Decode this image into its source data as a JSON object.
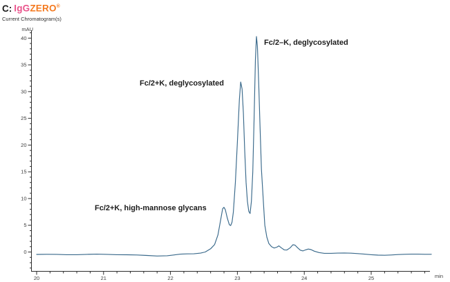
{
  "header": {
    "prefix": "C:",
    "brand_igg": "IgG",
    "brand_zero": "ZERO",
    "brand_reg": "®",
    "brand_color_igg": "#E9548C",
    "brand_color_zero": "#F4791F",
    "subtitle": "Current Chromatogram(s)"
  },
  "chart_data": {
    "type": "line",
    "title": "C: IgGZERO®",
    "subtitle": "Current Chromatogram(s)",
    "xlabel": "min",
    "ylabel": "mAU",
    "xlim": [
      20,
      25.9
    ],
    "ylim": [
      -3.6,
      41.5
    ],
    "grid": false,
    "x_major_ticks": [
      20,
      21,
      22,
      23,
      24,
      25
    ],
    "x_minor_step": 0.2,
    "y_major_ticks": [
      0,
      5,
      10,
      15,
      20,
      25,
      30,
      35,
      40
    ],
    "y_minor_step": 1,
    "axis_color": "#2a2a2a",
    "tick_label_color": "#3c3c3c",
    "annotation_color": "#1c1c1c",
    "series": [
      {
        "name": "Current Chromatogram",
        "color": "#38688A",
        "points": [
          [
            20.0,
            -0.45
          ],
          [
            20.15,
            -0.42
          ],
          [
            20.3,
            -0.44
          ],
          [
            20.45,
            -0.5
          ],
          [
            20.6,
            -0.5
          ],
          [
            20.75,
            -0.44
          ],
          [
            20.9,
            -0.4
          ],
          [
            21.05,
            -0.44
          ],
          [
            21.2,
            -0.5
          ],
          [
            21.35,
            -0.52
          ],
          [
            21.5,
            -0.55
          ],
          [
            21.65,
            -0.65
          ],
          [
            21.8,
            -0.75
          ],
          [
            21.95,
            -0.7
          ],
          [
            22.05,
            -0.55
          ],
          [
            22.15,
            -0.4
          ],
          [
            22.25,
            -0.35
          ],
          [
            22.35,
            -0.33
          ],
          [
            22.45,
            -0.2
          ],
          [
            22.52,
            0.0
          ],
          [
            22.6,
            0.6
          ],
          [
            22.66,
            1.4
          ],
          [
            22.71,
            3.2
          ],
          [
            22.75,
            6.0
          ],
          [
            22.78,
            8.1
          ],
          [
            22.8,
            8.35
          ],
          [
            22.82,
            7.9
          ],
          [
            22.85,
            6.3
          ],
          [
            22.88,
            5.1
          ],
          [
            22.9,
            4.95
          ],
          [
            22.92,
            5.6
          ],
          [
            22.94,
            7.5
          ],
          [
            22.97,
            13.0
          ],
          [
            23.0,
            20.5
          ],
          [
            23.03,
            28.5
          ],
          [
            23.05,
            31.8
          ],
          [
            23.07,
            30.5
          ],
          [
            23.09,
            26.0
          ],
          [
            23.11,
            19.0
          ],
          [
            23.13,
            13.0
          ],
          [
            23.15,
            9.5
          ],
          [
            23.17,
            7.6
          ],
          [
            23.19,
            7.2
          ],
          [
            23.21,
            9.5
          ],
          [
            23.23,
            15.0
          ],
          [
            23.25,
            25.0
          ],
          [
            23.27,
            36.0
          ],
          [
            23.285,
            40.3
          ],
          [
            23.3,
            38.5
          ],
          [
            23.32,
            31.0
          ],
          [
            23.34,
            23.0
          ],
          [
            23.36,
            15.5
          ],
          [
            23.39,
            9.0
          ],
          [
            23.41,
            5.0
          ],
          [
            23.44,
            2.8
          ],
          [
            23.47,
            1.6
          ],
          [
            23.51,
            1.0
          ],
          [
            23.55,
            0.75
          ],
          [
            23.59,
            0.9
          ],
          [
            23.62,
            1.15
          ],
          [
            23.66,
            0.75
          ],
          [
            23.7,
            0.4
          ],
          [
            23.74,
            0.38
          ],
          [
            23.79,
            0.8
          ],
          [
            23.83,
            1.35
          ],
          [
            23.86,
            1.3
          ],
          [
            23.9,
            0.8
          ],
          [
            23.94,
            0.35
          ],
          [
            23.98,
            0.2
          ],
          [
            24.02,
            0.4
          ],
          [
            24.06,
            0.55
          ],
          [
            24.1,
            0.45
          ],
          [
            24.15,
            0.15
          ],
          [
            24.22,
            -0.1
          ],
          [
            24.3,
            -0.25
          ],
          [
            24.4,
            -0.25
          ],
          [
            24.5,
            -0.2
          ],
          [
            24.6,
            -0.18
          ],
          [
            24.7,
            -0.22
          ],
          [
            24.8,
            -0.3
          ],
          [
            24.9,
            -0.4
          ],
          [
            25.0,
            -0.5
          ],
          [
            25.1,
            -0.58
          ],
          [
            25.2,
            -0.6
          ],
          [
            25.3,
            -0.55
          ],
          [
            25.4,
            -0.48
          ],
          [
            25.5,
            -0.42
          ],
          [
            25.6,
            -0.4
          ],
          [
            25.7,
            -0.4
          ],
          [
            25.8,
            -0.42
          ],
          [
            25.9,
            -0.43
          ]
        ]
      }
    ],
    "annotations": [
      {
        "label": "Fc/2+K, high-mannose glycans",
        "t": 22.8,
        "mAU": 8.35
      },
      {
        "label": "Fc/2+K, deglycosylated",
        "t": 23.05,
        "mAU": 31.8
      },
      {
        "label": "Fc/2–K, deglycosylated",
        "t": 23.285,
        "mAU": 40.3
      }
    ]
  }
}
